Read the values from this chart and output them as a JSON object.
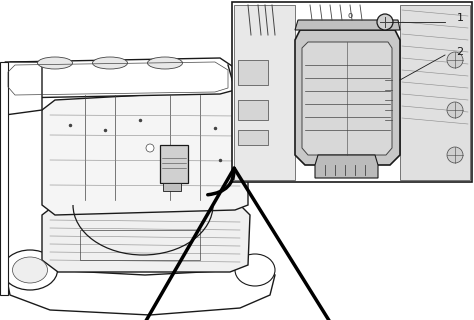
{
  "figure_width": 4.74,
  "figure_height": 3.2,
  "dpi": 100,
  "background_color": "#ffffff",
  "image_data": "target_encoded"
}
